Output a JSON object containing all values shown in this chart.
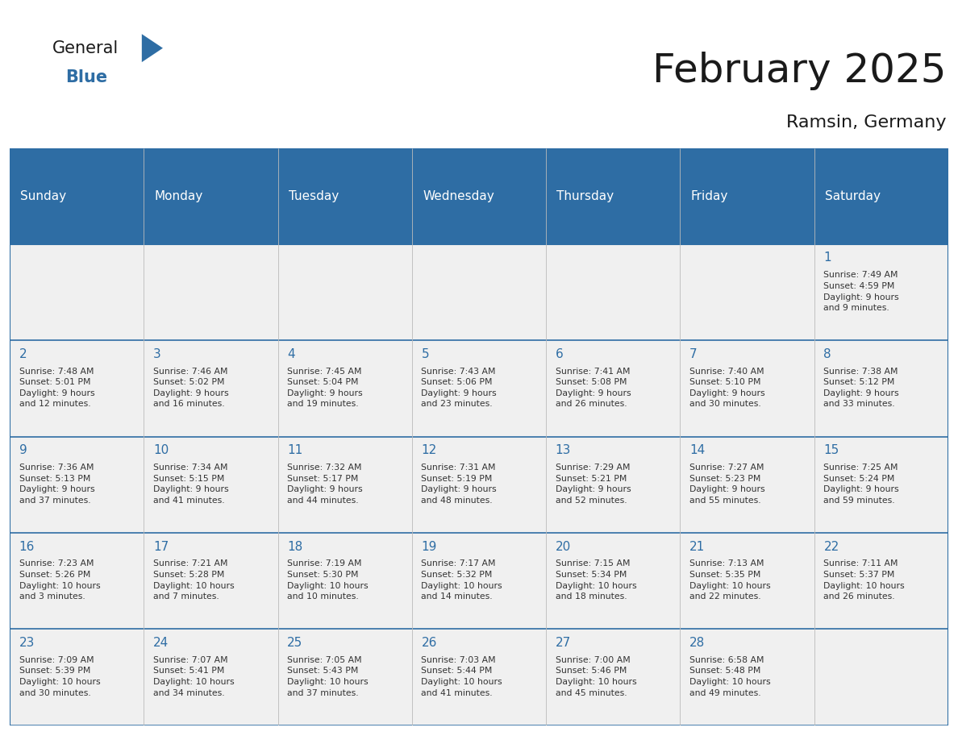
{
  "title": "February 2025",
  "subtitle": "Ramsin, Germany",
  "header_color": "#2E6DA4",
  "header_text_color": "#FFFFFF",
  "cell_bg_color": "#F0F0F0",
  "day_number_color": "#2E6DA4",
  "text_color": "#333333",
  "line_color": "#2E6DA4",
  "days_of_week": [
    "Sunday",
    "Monday",
    "Tuesday",
    "Wednesday",
    "Thursday",
    "Friday",
    "Saturday"
  ],
  "weeks": [
    [
      {
        "day": null,
        "info": null
      },
      {
        "day": null,
        "info": null
      },
      {
        "day": null,
        "info": null
      },
      {
        "day": null,
        "info": null
      },
      {
        "day": null,
        "info": null
      },
      {
        "day": null,
        "info": null
      },
      {
        "day": 1,
        "info": "Sunrise: 7:49 AM\nSunset: 4:59 PM\nDaylight: 9 hours\nand 9 minutes."
      }
    ],
    [
      {
        "day": 2,
        "info": "Sunrise: 7:48 AM\nSunset: 5:01 PM\nDaylight: 9 hours\nand 12 minutes."
      },
      {
        "day": 3,
        "info": "Sunrise: 7:46 AM\nSunset: 5:02 PM\nDaylight: 9 hours\nand 16 minutes."
      },
      {
        "day": 4,
        "info": "Sunrise: 7:45 AM\nSunset: 5:04 PM\nDaylight: 9 hours\nand 19 minutes."
      },
      {
        "day": 5,
        "info": "Sunrise: 7:43 AM\nSunset: 5:06 PM\nDaylight: 9 hours\nand 23 minutes."
      },
      {
        "day": 6,
        "info": "Sunrise: 7:41 AM\nSunset: 5:08 PM\nDaylight: 9 hours\nand 26 minutes."
      },
      {
        "day": 7,
        "info": "Sunrise: 7:40 AM\nSunset: 5:10 PM\nDaylight: 9 hours\nand 30 minutes."
      },
      {
        "day": 8,
        "info": "Sunrise: 7:38 AM\nSunset: 5:12 PM\nDaylight: 9 hours\nand 33 minutes."
      }
    ],
    [
      {
        "day": 9,
        "info": "Sunrise: 7:36 AM\nSunset: 5:13 PM\nDaylight: 9 hours\nand 37 minutes."
      },
      {
        "day": 10,
        "info": "Sunrise: 7:34 AM\nSunset: 5:15 PM\nDaylight: 9 hours\nand 41 minutes."
      },
      {
        "day": 11,
        "info": "Sunrise: 7:32 AM\nSunset: 5:17 PM\nDaylight: 9 hours\nand 44 minutes."
      },
      {
        "day": 12,
        "info": "Sunrise: 7:31 AM\nSunset: 5:19 PM\nDaylight: 9 hours\nand 48 minutes."
      },
      {
        "day": 13,
        "info": "Sunrise: 7:29 AM\nSunset: 5:21 PM\nDaylight: 9 hours\nand 52 minutes."
      },
      {
        "day": 14,
        "info": "Sunrise: 7:27 AM\nSunset: 5:23 PM\nDaylight: 9 hours\nand 55 minutes."
      },
      {
        "day": 15,
        "info": "Sunrise: 7:25 AM\nSunset: 5:24 PM\nDaylight: 9 hours\nand 59 minutes."
      }
    ],
    [
      {
        "day": 16,
        "info": "Sunrise: 7:23 AM\nSunset: 5:26 PM\nDaylight: 10 hours\nand 3 minutes."
      },
      {
        "day": 17,
        "info": "Sunrise: 7:21 AM\nSunset: 5:28 PM\nDaylight: 10 hours\nand 7 minutes."
      },
      {
        "day": 18,
        "info": "Sunrise: 7:19 AM\nSunset: 5:30 PM\nDaylight: 10 hours\nand 10 minutes."
      },
      {
        "day": 19,
        "info": "Sunrise: 7:17 AM\nSunset: 5:32 PM\nDaylight: 10 hours\nand 14 minutes."
      },
      {
        "day": 20,
        "info": "Sunrise: 7:15 AM\nSunset: 5:34 PM\nDaylight: 10 hours\nand 18 minutes."
      },
      {
        "day": 21,
        "info": "Sunrise: 7:13 AM\nSunset: 5:35 PM\nDaylight: 10 hours\nand 22 minutes."
      },
      {
        "day": 22,
        "info": "Sunrise: 7:11 AM\nSunset: 5:37 PM\nDaylight: 10 hours\nand 26 minutes."
      }
    ],
    [
      {
        "day": 23,
        "info": "Sunrise: 7:09 AM\nSunset: 5:39 PM\nDaylight: 10 hours\nand 30 minutes."
      },
      {
        "day": 24,
        "info": "Sunrise: 7:07 AM\nSunset: 5:41 PM\nDaylight: 10 hours\nand 34 minutes."
      },
      {
        "day": 25,
        "info": "Sunrise: 7:05 AM\nSunset: 5:43 PM\nDaylight: 10 hours\nand 37 minutes."
      },
      {
        "day": 26,
        "info": "Sunrise: 7:03 AM\nSunset: 5:44 PM\nDaylight: 10 hours\nand 41 minutes."
      },
      {
        "day": 27,
        "info": "Sunrise: 7:00 AM\nSunset: 5:46 PM\nDaylight: 10 hours\nand 45 minutes."
      },
      {
        "day": 28,
        "info": "Sunrise: 6:58 AM\nSunset: 5:48 PM\nDaylight: 10 hours\nand 49 minutes."
      },
      {
        "day": null,
        "info": null
      }
    ]
  ],
  "logo_text_general": "General",
  "logo_text_blue": "Blue",
  "logo_color_general": "#1a1a1a",
  "logo_color_blue": "#2E6DA4"
}
